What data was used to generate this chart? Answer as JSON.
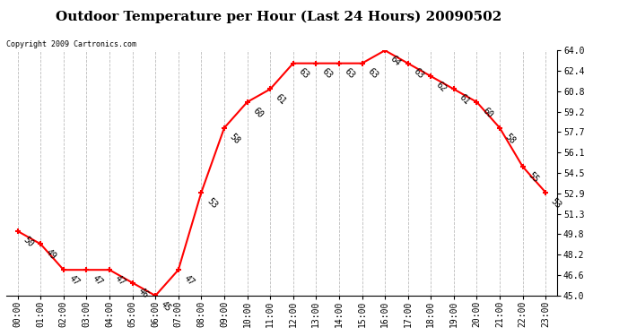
{
  "title": "Outdoor Temperature per Hour (Last 24 Hours) 20090502",
  "copyright": "Copyright 2009 Cartronics.com",
  "hours": [
    "00:00",
    "01:00",
    "02:00",
    "03:00",
    "04:00",
    "05:00",
    "06:00",
    "07:00",
    "08:00",
    "09:00",
    "10:00",
    "11:00",
    "12:00",
    "13:00",
    "14:00",
    "15:00",
    "16:00",
    "17:00",
    "18:00",
    "19:00",
    "20:00",
    "21:00",
    "22:00",
    "23:00"
  ],
  "temps": [
    50,
    49,
    47,
    47,
    47,
    46,
    45,
    47,
    53,
    58,
    60,
    61,
    63,
    63,
    63,
    63,
    64,
    63,
    62,
    61,
    60,
    58,
    55,
    53
  ],
  "ylim_min": 45.0,
  "ylim_max": 64.0,
  "yticks": [
    45.0,
    46.6,
    48.2,
    49.8,
    51.3,
    52.9,
    54.5,
    56.1,
    57.7,
    59.2,
    60.8,
    62.4,
    64.0
  ],
  "line_color": "red",
  "bg_color": "white",
  "grid_color": "#bbbbbb",
  "title_fontsize": 11,
  "label_fontsize": 7,
  "annot_fontsize": 7,
  "copyright_fontsize": 6
}
